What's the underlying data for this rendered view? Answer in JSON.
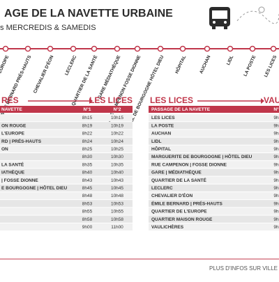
{
  "header": {
    "title": "AGE DE LA NAVETTE URBAINE",
    "subtitle_prefix": "s",
    "subtitle": "MERCREDIS & SAMEDIS"
  },
  "stops": [
    "E L'EUROPE",
    "ÉMILE BERNARD PRÉS-HAUTS",
    "CHEVALIER D'ÉON",
    "LECLERC",
    "QUARTIER DE LA SANTÉ",
    "GARE MÉDIATHÈQUE",
    "RUE CAMPENON FOSSE DIONNE",
    "M. DE BOURGOGNE HÔTEL DIEU",
    "HÔPITAL",
    "AUCHAN",
    "LIDL",
    "LA POSTE",
    "LES LICES"
  ],
  "left_table": {
    "from": "RES",
    "to": "LES LICES",
    "columns": [
      "NAVETTE",
      "N°1",
      "N°2"
    ],
    "rows": [
      [
        "",
        "8h15",
        "10h15"
      ],
      [
        "ON ROUGE",
        "8h19",
        "10h19"
      ],
      [
        "L'EUROPE",
        "8h22",
        "10h22"
      ],
      [
        "RD | PRÉS-HAUTS",
        "8h24",
        "10h24"
      ],
      [
        "ON",
        "8h25",
        "10h25"
      ],
      [
        "",
        "8h30",
        "10h30"
      ],
      [
        "LA SANTÉ",
        "8h35",
        "10h35"
      ],
      [
        "IATHÈQUE",
        "8h40",
        "10h40"
      ],
      [
        "| FOSSE DIONNE",
        "8h43",
        "10h43"
      ],
      [
        "E BOURGOGNE | HÔTEL DIEU",
        "8h45",
        "10h45"
      ],
      [
        "",
        "8h48",
        "10h48"
      ],
      [
        "",
        "8h53",
        "10h53"
      ],
      [
        "",
        "8h55",
        "10h55"
      ],
      [
        "",
        "8h58",
        "10h58"
      ],
      [
        "",
        "9h00",
        "11h00"
      ]
    ]
  },
  "right_table": {
    "from": "LES LICES",
    "to": "VAUL",
    "columns": [
      "PASSAGE DE LA NAVETTE",
      "N°"
    ],
    "rows": [
      [
        "LES LICES",
        "9h"
      ],
      [
        "LA POSTE",
        "9h"
      ],
      [
        "AUCHAN",
        "9h"
      ],
      [
        "LIDL",
        "9h"
      ],
      [
        "HÔPITAL",
        "9h"
      ],
      [
        "MARGUERITE DE BOURGOGNE | HÔTEL DIEU",
        "9h"
      ],
      [
        "RUE CAMPENON | FOSSE DIONNE",
        "9h"
      ],
      [
        "GARE | MÉDIATHÈQUE",
        "9h"
      ],
      [
        "QUARTIER DE LA SANTÉ",
        "9h"
      ],
      [
        "LECLERC",
        "9h"
      ],
      [
        "CHEVALIER D'ÉON",
        "9h"
      ],
      [
        "ÉMILE BERNARD | PRÉS-HAUTS",
        "9h"
      ],
      [
        "QUARTIER DE L'EUROPE",
        "9h"
      ],
      [
        "QUARTIER MAISON ROUGE",
        "9h"
      ],
      [
        "VAULICHÈRES",
        "9h"
      ]
    ]
  },
  "footer": {
    "text": "PLUS D'INFOS SUR VILLE"
  }
}
